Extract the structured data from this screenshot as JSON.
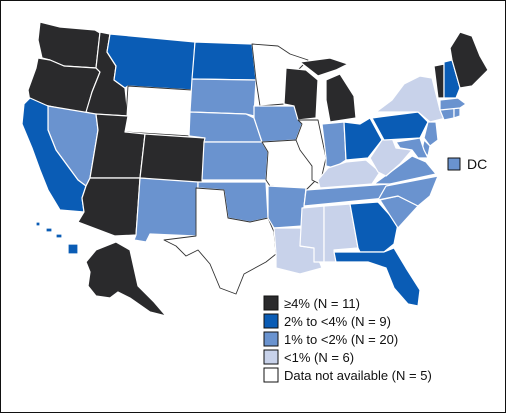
{
  "colors": {
    "ge4": "#2a2a2c",
    "c2to4": "#0a5cb5",
    "c1to2": "#6a93cf",
    "lt1": "#c8d2ea",
    "na": "#ffffff"
  },
  "legend": [
    {
      "key": "ge4",
      "label": "≥4% (N = 11)"
    },
    {
      "key": "c2to4",
      "label": "2% to <4% (N = 9)"
    },
    {
      "key": "c1to2",
      "label": "1% to <2% (N = 20)"
    },
    {
      "key": "lt1",
      "label": "<1% (N = 6)"
    },
    {
      "key": "na",
      "label": "Data not available (N = 5)"
    }
  ],
  "dc_label": "DC",
  "state_categories": {
    "WA": "ge4",
    "OR": "ge4",
    "ID": "ge4",
    "UT": "ge4",
    "AZ": "ge4",
    "CO": "ge4",
    "WI": "ge4",
    "MI": "ge4",
    "VT": "ge4",
    "ME": "ge4",
    "AK": "ge4",
    "MT": "c2to4",
    "CA": "c2to4",
    "ND": "c2to4",
    "OH": "c2to4",
    "PA": "c2to4",
    "NH": "c2to4",
    "GA": "c2to4",
    "FL": "c2to4",
    "HI": "c2to4",
    "NV": "c1to2",
    "NM": "c1to2",
    "SD": "c1to2",
    "NE": "c1to2",
    "KS": "c1to2",
    "OK": "c1to2",
    "IA": "c1to2",
    "AR": "c1to2",
    "IN": "c1to2",
    "TN": "c1to2",
    "NC": "c1to2",
    "SC": "c1to2",
    "VA": "c1to2",
    "MD": "c1to2",
    "DE": "c1to2",
    "NJ": "c1to2",
    "CT": "c1to2",
    "RI": "c1to2",
    "MA": "c1to2",
    "DC": "c1to2",
    "NY": "lt1",
    "KY": "lt1",
    "WV": "lt1",
    "LA": "lt1",
    "MS": "lt1",
    "AL": "lt1",
    "WY": "na",
    "MN": "na",
    "MO": "na",
    "IL": "na",
    "TX": "na"
  }
}
